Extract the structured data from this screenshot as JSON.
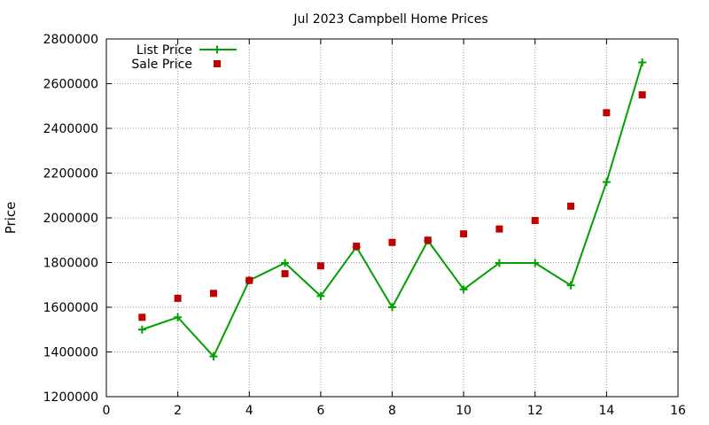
{
  "chart_data": {
    "type": "line",
    "title": "Jul 2023 Campbell Home Prices",
    "xlabel": "",
    "ylabel": "Price",
    "xlim": [
      0,
      16
    ],
    "ylim": [
      1200000,
      2800000
    ],
    "xticks": [
      0,
      2,
      4,
      6,
      8,
      10,
      12,
      14,
      16
    ],
    "yticks": [
      1200000,
      1400000,
      1600000,
      1800000,
      2000000,
      2200000,
      2400000,
      2600000,
      2800000
    ],
    "grid": true,
    "legend_position": "top-left",
    "series": [
      {
        "name": "List Price",
        "style": "line-plus",
        "color": "#00a000",
        "x": [
          1,
          2,
          3,
          4,
          5,
          6,
          7,
          8,
          9,
          10,
          11,
          12,
          13,
          14,
          15
        ],
        "y": [
          1500000,
          1555000,
          1380000,
          1720000,
          1798000,
          1650000,
          1870000,
          1600000,
          1898000,
          1680000,
          1798000,
          1798000,
          1698000,
          2160000,
          2695000
        ]
      },
      {
        "name": "Sale Price",
        "style": "square",
        "color": "#c00000",
        "x": [
          1,
          2,
          3,
          4,
          5,
          6,
          7,
          8,
          9,
          10,
          11,
          12,
          13,
          14,
          15
        ],
        "y": [
          1555000,
          1640000,
          1662000,
          1720000,
          1750000,
          1785000,
          1873000,
          1890000,
          1900000,
          1928000,
          1950000,
          1988000,
          2052000,
          2470000,
          2550000
        ]
      }
    ]
  }
}
